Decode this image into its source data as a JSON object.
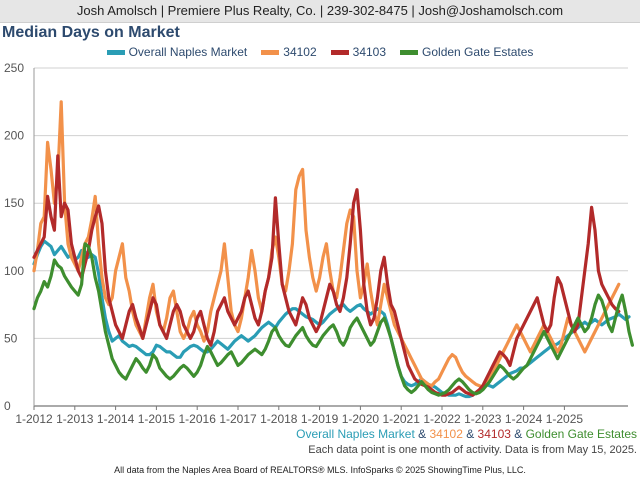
{
  "header": {
    "contact": "Josh Amolsch | Premiere Plus Realty, Co. | 239-302-8475 | Josh@Joshamolsch.com"
  },
  "footer": {
    "series_caption": {
      "s1": "Overall Naples Market",
      "amp1": " & ",
      "s2": "34102",
      "amp2": " & ",
      "s3": "34103",
      "amp3": " & ",
      "s4": "Golden Gate Estates"
    },
    "note": "Each data point is one month of activity. Data is from May 15, 2025.",
    "source": "All data from the Naples Area Board of REALTORS® MLS. InfoSparks © 2025 ShowingTime Plus, LLC."
  },
  "chart_data": {
    "type": "line",
    "title": "Median Days on Market",
    "xlabel": "",
    "ylabel": "",
    "ylim": [
      0,
      250
    ],
    "yticks": [
      0,
      50,
      100,
      150,
      200,
      250
    ],
    "x_tick_labels": [
      "1-2012",
      "1-2013",
      "1-2014",
      "1-2015",
      "1-2016",
      "1-2017",
      "1-2018",
      "1-2019",
      "1-2020",
      "1-2021",
      "1-2022",
      "1-2023",
      "1-2024",
      "1-2025"
    ],
    "x_start": "1-2012",
    "grid": "horizontal",
    "legend_position": "top",
    "series": [
      {
        "name": "Overall Naples Market",
        "color": "#2a9db5",
        "values": [
          105,
          112,
          118,
          122,
          120,
          118,
          112,
          115,
          118,
          114,
          110,
          112,
          108,
          110,
          115,
          114,
          110,
          112,
          110,
          98,
          80,
          65,
          55,
          48,
          50,
          52,
          48,
          46,
          44,
          45,
          44,
          42,
          40,
          38,
          38,
          40,
          45,
          44,
          42,
          40,
          40,
          38,
          36,
          36,
          40,
          42,
          44,
          45,
          44,
          42,
          40,
          40,
          42,
          45,
          48,
          46,
          44,
          42,
          45,
          48,
          50,
          52,
          50,
          48,
          50,
          52,
          55,
          58,
          60,
          62,
          60,
          58,
          62,
          65,
          68,
          70,
          72,
          72,
          70,
          68,
          66,
          65,
          64,
          62,
          60,
          62,
          65,
          68,
          70,
          72,
          74,
          75,
          72,
          70,
          72,
          74,
          75,
          72,
          70,
          68,
          70,
          72,
          70,
          68,
          60,
          50,
          40,
          30,
          22,
          18,
          16,
          15,
          16,
          18,
          20,
          18,
          16,
          15,
          14,
          12,
          10,
          9,
          8,
          8,
          8,
          9,
          8,
          7,
          7,
          8,
          10,
          12,
          14,
          16,
          15,
          14,
          16,
          18,
          20,
          22,
          24,
          25,
          26,
          28,
          28,
          30,
          32,
          34,
          36,
          38,
          40,
          42,
          44,
          45,
          46,
          48,
          50,
          52,
          54,
          56,
          58,
          60,
          62,
          60,
          62,
          64,
          62,
          60,
          62,
          64,
          65,
          66,
          68,
          66,
          64,
          66
        ]
      },
      {
        "name": "34102",
        "color": "#f2914a",
        "values": [
          100,
          115,
          135,
          140,
          195,
          175,
          150,
          170,
          225,
          150,
          120,
          110,
          105,
          100,
          110,
          120,
          125,
          138,
          155,
          120,
          95,
          80,
          75,
          80,
          100,
          110,
          120,
          95,
          85,
          70,
          60,
          55,
          50,
          65,
          80,
          90,
          70,
          60,
          55,
          65,
          80,
          85,
          70,
          55,
          50,
          55,
          65,
          70,
          60,
          55,
          48,
          55,
          70,
          80,
          90,
          100,
          120,
          95,
          70,
          60,
          55,
          65,
          80,
          95,
          115,
          100,
          80,
          70,
          85,
          95,
          115,
          125,
          110,
          90,
          85,
          100,
          120,
          160,
          170,
          175,
          130,
          110,
          95,
          85,
          95,
          110,
          120,
          100,
          85,
          80,
          95,
          115,
          135,
          145,
          140,
          100,
          80,
          90,
          105,
          85,
          70,
          60,
          75,
          90,
          80,
          70,
          60,
          55,
          50,
          45,
          40,
          35,
          30,
          25,
          20,
          18,
          16,
          15,
          18,
          20,
          25,
          30,
          35,
          38,
          36,
          30,
          25,
          22,
          20,
          18,
          16,
          15,
          14,
          15,
          20,
          25,
          30,
          35,
          40,
          45,
          50,
          55,
          60,
          55,
          50,
          45,
          40,
          45,
          50,
          55,
          60,
          55,
          50,
          45,
          40,
          45,
          55,
          65,
          60,
          55,
          50,
          45,
          40,
          45,
          50,
          55,
          60,
          65,
          70,
          75,
          80,
          85,
          90
        ]
      },
      {
        "name": "34103",
        "color": "#b22a2a",
        "values": [
          110,
          115,
          120,
          125,
          155,
          140,
          130,
          185,
          140,
          150,
          145,
          120,
          110,
          100,
          95,
          105,
          115,
          130,
          140,
          148,
          135,
          100,
          80,
          70,
          60,
          55,
          50,
          60,
          70,
          75,
          65,
          58,
          50,
          60,
          70,
          80,
          75,
          60,
          55,
          50,
          60,
          70,
          75,
          70,
          60,
          55,
          50,
          55,
          65,
          70,
          60,
          50,
          45,
          55,
          70,
          75,
          80,
          70,
          65,
          60,
          65,
          70,
          80,
          85,
          75,
          65,
          60,
          70,
          85,
          95,
          110,
          154,
          120,
          90,
          80,
          70,
          65,
          60,
          70,
          80,
          75,
          65,
          60,
          55,
          60,
          70,
          80,
          90,
          85,
          75,
          70,
          80,
          95,
          120,
          150,
          160,
          130,
          90,
          70,
          60,
          65,
          80,
          100,
          110,
          90,
          75,
          70,
          60,
          50,
          40,
          30,
          25,
          20,
          18,
          16,
          15,
          14,
          12,
          10,
          9,
          8,
          8,
          9,
          10,
          12,
          14,
          12,
          10,
          9,
          8,
          10,
          12,
          15,
          20,
          25,
          30,
          35,
          40,
          38,
          35,
          30,
          40,
          50,
          55,
          60,
          65,
          70,
          75,
          80,
          70,
          60,
          55,
          60,
          80,
          95,
          90,
          80,
          70,
          60,
          55,
          60,
          80,
          100,
          120,
          147,
          130,
          100,
          90,
          85,
          80,
          75,
          72,
          70
        ]
      },
      {
        "name": "Golden Gate Estates",
        "color": "#3e8e2f",
        "values": [
          72,
          80,
          85,
          92,
          88,
          96,
          108,
          104,
          102,
          96,
          92,
          88,
          85,
          82,
          90,
          120,
          118,
          110,
          95,
          85,
          70,
          55,
          45,
          35,
          30,
          25,
          22,
          20,
          25,
          30,
          35,
          32,
          28,
          25,
          30,
          38,
          35,
          28,
          25,
          22,
          20,
          22,
          25,
          28,
          30,
          28,
          25,
          22,
          25,
          30,
          38,
          44,
          40,
          35,
          30,
          32,
          35,
          38,
          40,
          35,
          30,
          32,
          35,
          38,
          40,
          42,
          40,
          38,
          42,
          48,
          55,
          58,
          52,
          48,
          45,
          44,
          48,
          52,
          55,
          58,
          52,
          48,
          45,
          44,
          48,
          52,
          55,
          58,
          60,
          55,
          48,
          45,
          50,
          58,
          62,
          65,
          60,
          55,
          50,
          45,
          48,
          55,
          62,
          65,
          58,
          50,
          40,
          30,
          22,
          15,
          12,
          10,
          12,
          15,
          18,
          15,
          12,
          10,
          9,
          8,
          9,
          10,
          12,
          15,
          18,
          20,
          18,
          15,
          12,
          10,
          9,
          10,
          12,
          15,
          18,
          22,
          26,
          30,
          28,
          25,
          22,
          20,
          22,
          25,
          28,
          30,
          35,
          40,
          45,
          50,
          55,
          50,
          45,
          40,
          35,
          40,
          45,
          50,
          55,
          60,
          65,
          60,
          55,
          58,
          65,
          75,
          82,
          78,
          70,
          60,
          55,
          65,
          75,
          82,
          70,
          55,
          45
        ]
      }
    ]
  }
}
